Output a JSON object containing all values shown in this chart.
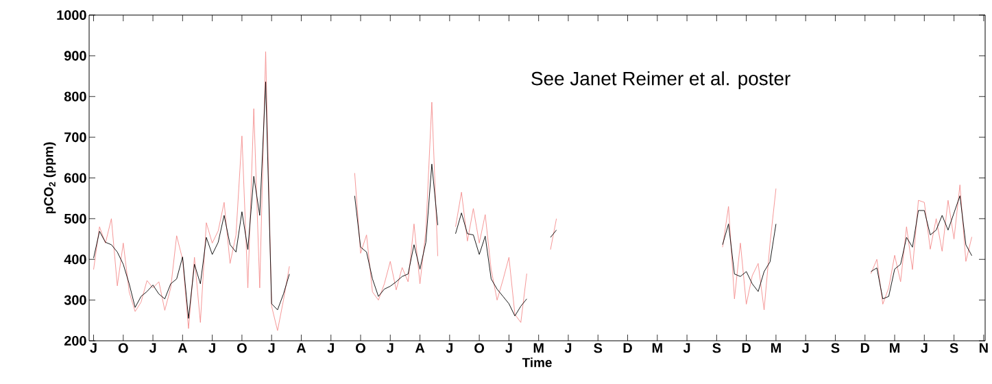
{
  "chart_data": {
    "type": "line",
    "xlabel": "Time",
    "ylabel": "pCO$_{2}$ (ppm)",
    "annotations": [
      "See Janet Reimer et al. poster"
    ],
    "ylim": [
      200,
      1000
    ],
    "yticks": [
      200,
      300,
      400,
      500,
      600,
      700,
      800,
      900,
      1000
    ],
    "categories": [
      "J",
      null,
      null,
      null,
      null,
      "O",
      null,
      null,
      null,
      null,
      "J",
      null,
      null,
      null,
      null,
      "A",
      null,
      null,
      null,
      null,
      "J",
      null,
      null,
      null,
      null,
      "O",
      null,
      null,
      null,
      null,
      "J",
      null,
      null,
      null,
      null,
      "A",
      null,
      null,
      null,
      null,
      "J",
      null,
      null,
      null,
      null,
      "O",
      null,
      null,
      null,
      null,
      "J",
      null,
      null,
      null,
      null,
      "A",
      null,
      null,
      null,
      null,
      "J",
      null,
      null,
      null,
      null,
      "O",
      null,
      null,
      null,
      null,
      "J",
      null,
      null,
      null,
      null,
      "M",
      null,
      null,
      null,
      null,
      "J",
      null,
      null,
      null,
      null,
      "S",
      null,
      null,
      null,
      null,
      "D",
      null,
      null,
      null,
      null,
      "M",
      null,
      null,
      null,
      null,
      "J",
      null,
      null,
      null,
      null,
      "S",
      null,
      null,
      null,
      null,
      "D",
      null,
      null,
      null,
      null,
      "M",
      null,
      null,
      null,
      null,
      "J",
      null,
      null,
      null,
      null,
      "S",
      null,
      null,
      null,
      null,
      "D",
      null,
      null,
      null,
      null,
      "M",
      null,
      null,
      null,
      null,
      "J",
      null,
      null,
      null,
      null,
      "S",
      null,
      null,
      null,
      null,
      "N"
    ],
    "series": [
      {
        "color": "#f48c8c",
        "values": [
          375,
          480,
          440,
          500,
          335,
          440,
          320,
          272,
          295,
          348,
          330,
          345,
          275,
          330,
          458,
          400,
          230,
          405,
          245,
          490,
          440,
          470,
          540,
          390,
          460,
          703,
          330,
          770,
          330,
          910,
          285,
          225,
          300,
          383,
          null,
          null,
          null,
          null,
          null,
          null,
          null,
          null,
          null,
          null,
          612,
          415,
          460,
          320,
          300,
          340,
          395,
          325,
          380,
          345,
          487,
          340,
          470,
          786,
          408,
          null,
          null,
          480,
          565,
          445,
          525,
          440,
          510,
          375,
          300,
          350,
          405,
          265,
          245,
          365,
          null,
          null,
          null,
          424,
          500,
          null,
          null,
          null,
          null,
          null,
          null,
          null,
          null,
          null,
          null,
          null,
          null,
          null,
          null,
          null,
          null,
          null,
          null,
          null,
          null,
          null,
          null,
          null,
          null,
          null,
          null,
          null,
          430,
          530,
          303,
          440,
          290,
          360,
          390,
          276,
          440,
          574,
          null,
          null,
          null,
          null,
          null,
          null,
          null,
          null,
          null,
          null,
          null,
          null,
          null,
          null,
          null,
          365,
          400,
          290,
          330,
          410,
          345,
          480,
          375,
          545,
          540,
          425,
          500,
          420,
          545,
          450,
          583,
          395,
          455,
          null,
          null
        ]
      },
      {
        "color": "#000000",
        "values": [
          403,
          469,
          442,
          436,
          418,
          388,
          340,
          282,
          309,
          321,
          337,
          315,
          303,
          340,
          352,
          406,
          255,
          388,
          340,
          454,
          412,
          442,
          508,
          436,
          418,
          517,
          424,
          604,
          508,
          836,
          291,
          276,
          315,
          364,
          null,
          null,
          null,
          null,
          null,
          null,
          null,
          null,
          null,
          null,
          556,
          430,
          418,
          352,
          309,
          327,
          334,
          345,
          358,
          364,
          436,
          376,
          442,
          634,
          484,
          null,
          null,
          463,
          514,
          463,
          460,
          412,
          457,
          352,
          327,
          309,
          291,
          261,
          285,
          303,
          null,
          null,
          null,
          454,
          472,
          null,
          null,
          null,
          null,
          null,
          null,
          null,
          null,
          null,
          null,
          null,
          null,
          null,
          null,
          null,
          null,
          null,
          null,
          null,
          null,
          null,
          null,
          null,
          null,
          null,
          null,
          null,
          436,
          487,
          364,
          358,
          370,
          340,
          321,
          370,
          394,
          487,
          null,
          null,
          null,
          null,
          null,
          null,
          null,
          null,
          null,
          null,
          null,
          null,
          null,
          null,
          null,
          370,
          379,
          303,
          309,
          376,
          388,
          454,
          430,
          520,
          520,
          460,
          472,
          508,
          472,
          514,
          556,
          436,
          409,
          null,
          null
        ]
      }
    ]
  }
}
